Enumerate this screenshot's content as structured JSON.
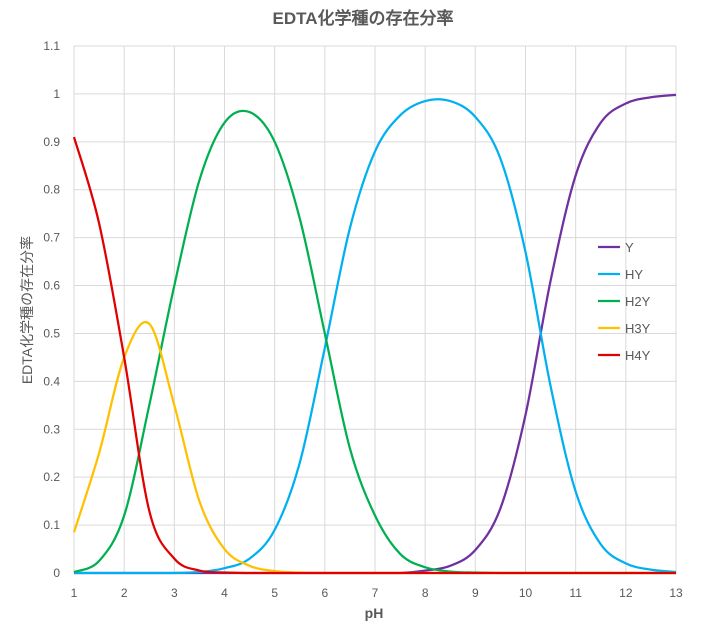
{
  "chart_data": {
    "type": "line",
    "title": "EDTA化学種の存在分率",
    "xlabel": "pH",
    "ylabel": "EDTA化学種の存在分率",
    "xlim": [
      1,
      13
    ],
    "ylim": [
      0,
      1.1
    ],
    "x_ticks": [
      "1",
      "2",
      "3",
      "4",
      "5",
      "6",
      "7",
      "8",
      "9",
      "10",
      "11",
      "12",
      "13"
    ],
    "y_ticks": [
      "0",
      "0.1",
      "0.2",
      "0.3",
      "0.4",
      "0.5",
      "0.6",
      "0.7",
      "0.8",
      "0.9",
      "1",
      "1.1"
    ],
    "grid": true,
    "legend_position": "right",
    "x": [
      1,
      1.5,
      2,
      2.5,
      3,
      3.5,
      4,
      4.5,
      5,
      5.5,
      6,
      6.5,
      7,
      7.5,
      8,
      8.5,
      9,
      9.5,
      10,
      10.5,
      11,
      11.5,
      12,
      12.5,
      13
    ],
    "series": [
      {
        "name": "Y",
        "color": "#7030A0",
        "values": [
          0,
          0,
          0,
          0,
          0,
          0,
          0,
          0,
          0,
          0,
          0,
          0,
          0,
          0,
          0.005,
          0.015,
          0.048,
          0.135,
          0.33,
          0.61,
          0.83,
          0.94,
          0.98,
          0.993,
          0.998
        ]
      },
      {
        "name": "HY",
        "color": "#00B0F0",
        "values": [
          0,
          0,
          0,
          0,
          0,
          0.002,
          0.01,
          0.03,
          0.09,
          0.23,
          0.47,
          0.72,
          0.88,
          0.955,
          0.985,
          0.985,
          0.952,
          0.865,
          0.67,
          0.39,
          0.17,
          0.06,
          0.02,
          0.007,
          0.002
        ]
      },
      {
        "name": "H2Y",
        "color": "#00B050",
        "values": [
          0.002,
          0.025,
          0.12,
          0.35,
          0.6,
          0.82,
          0.94,
          0.962,
          0.9,
          0.74,
          0.5,
          0.26,
          0.12,
          0.04,
          0.012,
          0.003,
          0.001,
          0,
          0,
          0,
          0,
          0,
          0,
          0,
          0
        ]
      },
      {
        "name": "H3Y",
        "color": "#FFC000",
        "values": [
          0.085,
          0.25,
          0.45,
          0.52,
          0.35,
          0.15,
          0.05,
          0.015,
          0.004,
          0.001,
          0,
          0,
          0,
          0,
          0,
          0,
          0,
          0,
          0,
          0,
          0,
          0,
          0,
          0,
          0
        ]
      },
      {
        "name": "H4Y",
        "color": "#E00000",
        "values": [
          0.91,
          0.73,
          0.45,
          0.13,
          0.03,
          0.005,
          0.001,
          0,
          0,
          0,
          0,
          0,
          0,
          0,
          0,
          0,
          0,
          0,
          0,
          0,
          0,
          0,
          0,
          0,
          0
        ]
      }
    ]
  }
}
